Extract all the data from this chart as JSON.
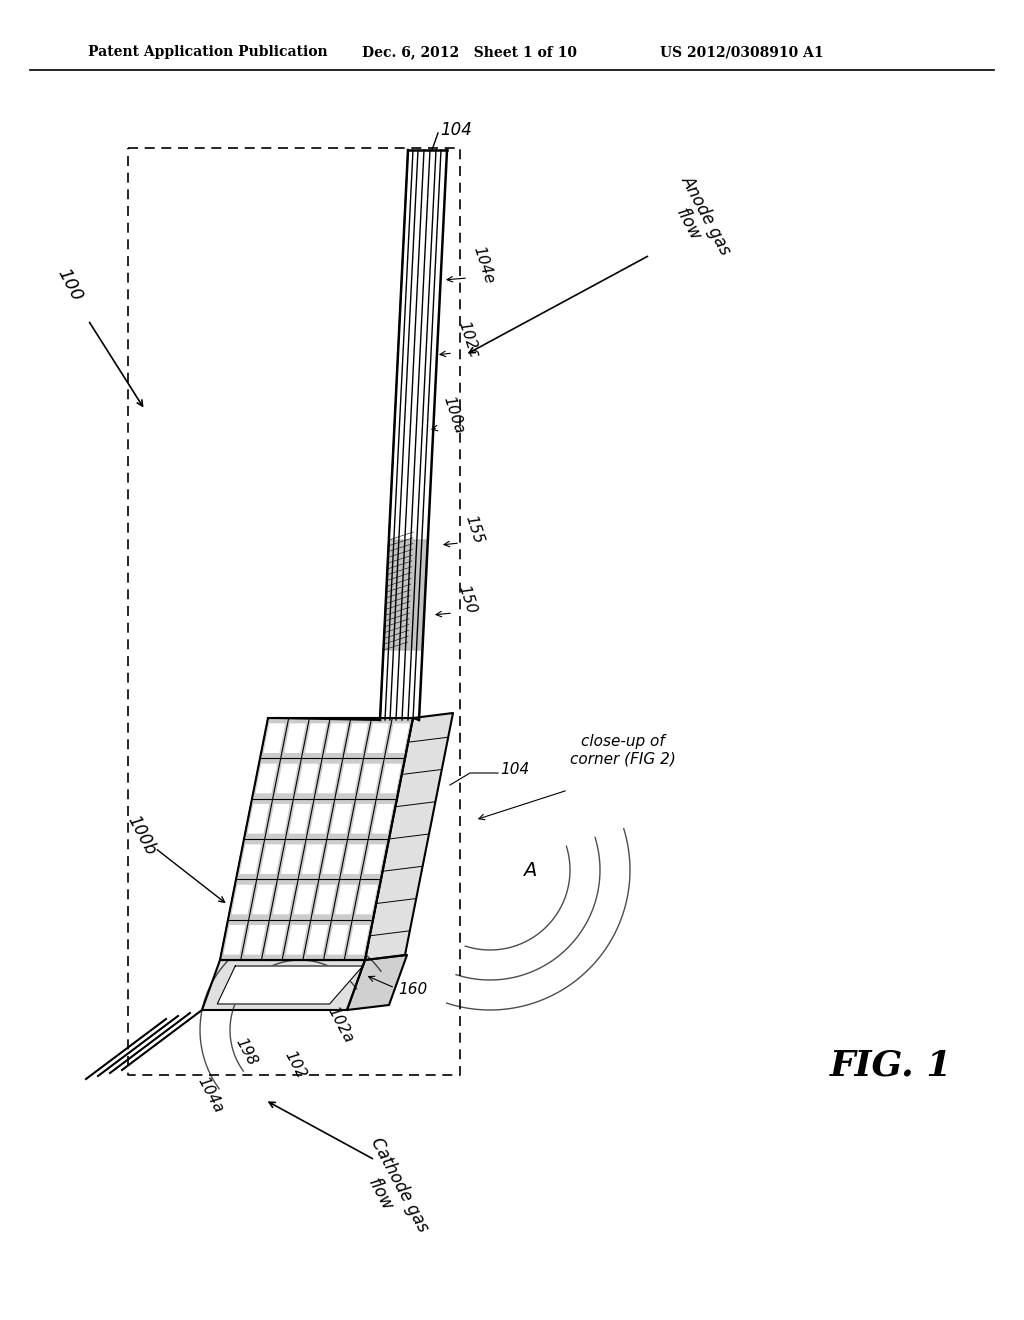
{
  "bg_color": "#ffffff",
  "header_left": "Patent Application Publication",
  "header_mid": "Dec. 6, 2012   Sheet 1 of 10",
  "header_right": "US 2012/0308910 A1",
  "fig_label": "FIG. 1",
  "ref_100": "100",
  "ref_100a": "100a",
  "ref_100b": "100b",
  "ref_102": "102",
  "ref_102a": "102a",
  "ref_102c": "102c",
  "ref_104": "104",
  "ref_104a": "104a",
  "ref_104e": "104e",
  "ref_150": "150",
  "ref_155": "155",
  "ref_160": "160",
  "ref_198": "198",
  "anode_gas_flow": "Anode gas\nflow",
  "cathode_gas_flow": "Cathode gas\nflow",
  "closeup": "close-up of\ncorner (FIG 2)",
  "label_A": "A",
  "plate_color": "#f8f8f8",
  "edge_color": "#000000",
  "grid_color_dark": "#888888",
  "grid_color_light": "#ffffff"
}
